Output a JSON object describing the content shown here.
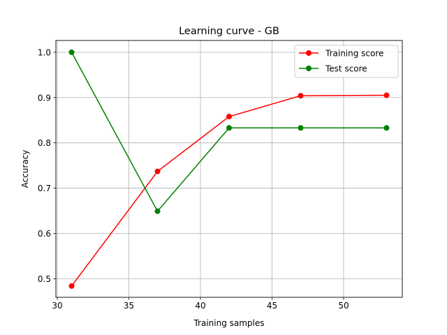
{
  "chart_data": {
    "type": "line",
    "title": "Learning curve - GB",
    "xlabel": "Training samples",
    "ylabel": "Accuracy",
    "xlim": [
      29.9,
      54.1
    ],
    "ylim": [
      0.459,
      1.026
    ],
    "xticks": [
      30,
      35,
      40,
      45,
      50
    ],
    "yticks": [
      0.5,
      0.6,
      0.7,
      0.8,
      0.9,
      1.0
    ],
    "xtick_labels": [
      "30",
      "35",
      "40",
      "45",
      "50"
    ],
    "ytick_labels": [
      "0.5",
      "0.6",
      "0.7",
      "0.8",
      "0.9",
      "1.0"
    ],
    "grid": true,
    "legend_position": "top-right",
    "series": [
      {
        "name": "Training score",
        "color": "#ff0000",
        "x": [
          31,
          37,
          42,
          47,
          53
        ],
        "y": [
          0.484,
          0.737,
          0.858,
          0.904,
          0.905
        ]
      },
      {
        "name": "Test score",
        "color": "#008000",
        "x": [
          31,
          37,
          42,
          47,
          53
        ],
        "y": [
          1.0,
          0.649,
          0.833,
          0.833,
          0.833
        ]
      }
    ]
  }
}
